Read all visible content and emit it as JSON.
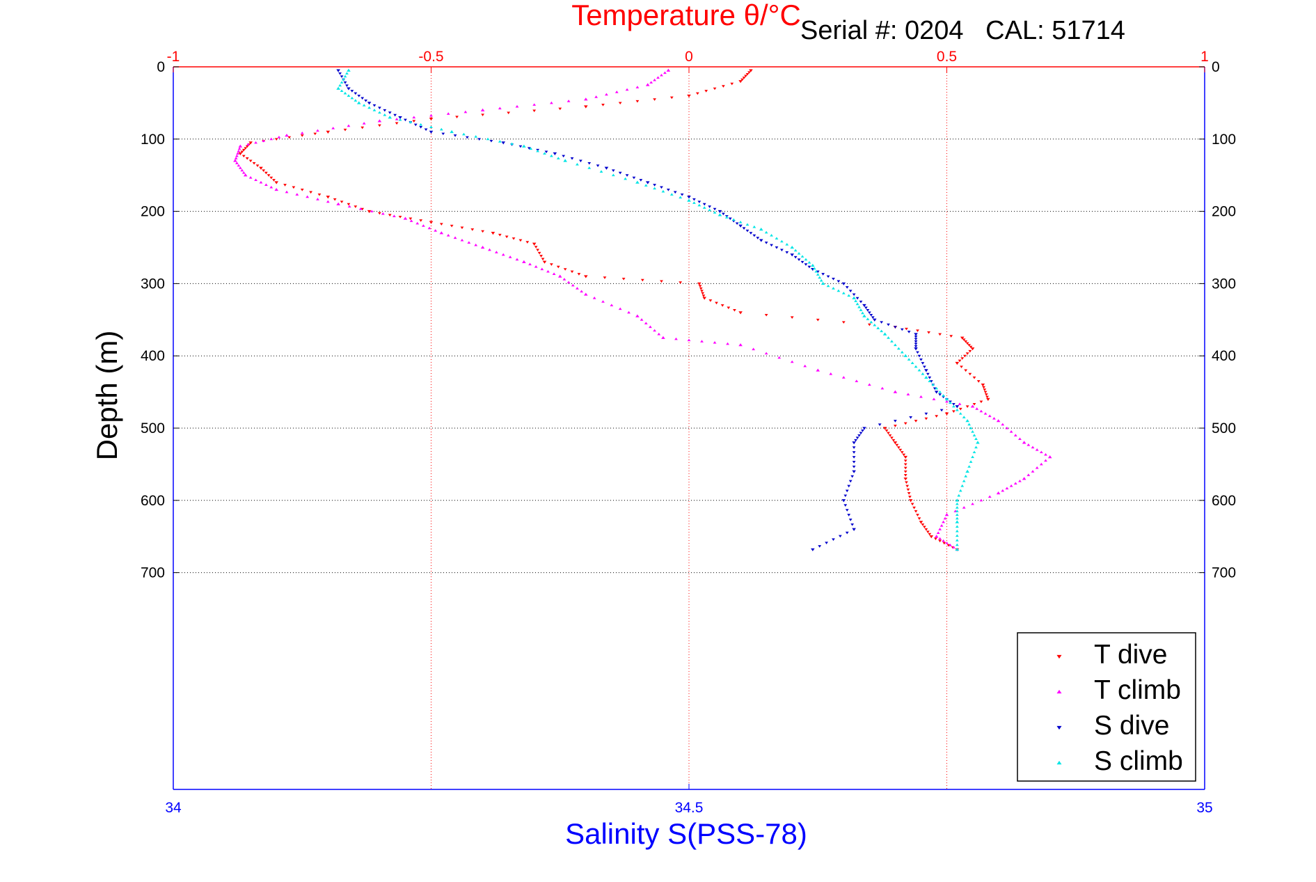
{
  "header": {
    "serial_text": "Serial #: 0204   CAL: 51714"
  },
  "colors": {
    "temperature_axis": "#ff0000",
    "salinity_axis": "#0000ff",
    "depth_axis": "#000000",
    "t_dive": "#ff0000",
    "t_climb": "#ff00ff",
    "s_dive": "#0000cc",
    "s_climb": "#00e5e5"
  },
  "chart_data": {
    "type": "scatter",
    "top_axis": {
      "title": "Temperature θ/°C",
      "range": [
        -1,
        1
      ],
      "ticks": [
        -1,
        -0.5,
        0,
        0.5,
        1
      ],
      "tick_labels": [
        "-1",
        "-0.5",
        "0",
        "0.5",
        "1"
      ]
    },
    "bottom_axis": {
      "title": "Salinity S(PSS-78)",
      "range": [
        34,
        35
      ],
      "ticks": [
        34,
        34.5,
        35
      ],
      "tick_labels": [
        "34",
        "34.5",
        "35"
      ]
    },
    "y_axis": {
      "title": "Depth (m)",
      "range": [
        0,
        1000
      ],
      "reversed": true,
      "ticks": [
        0,
        100,
        200,
        300,
        400,
        500,
        600,
        700
      ],
      "tick_labels": [
        "0",
        "100",
        "200",
        "300",
        "400",
        "500",
        "600",
        "700"
      ]
    },
    "grid": true,
    "legend_position": "bottom-right",
    "series": [
      {
        "name": "T dive",
        "axis": "temperature",
        "marker": "triangle-down",
        "points": [
          [
            0.12,
            5
          ],
          [
            0.1,
            20
          ],
          [
            0.0,
            40
          ],
          [
            -0.2,
            55
          ],
          [
            -0.5,
            72
          ],
          [
            -0.7,
            90
          ],
          [
            -0.85,
            105
          ],
          [
            -0.87,
            120
          ],
          [
            -0.83,
            140
          ],
          [
            -0.8,
            160
          ],
          [
            -0.7,
            180
          ],
          [
            -0.62,
            200
          ],
          [
            -0.5,
            215
          ],
          [
            -0.38,
            230
          ],
          [
            -0.3,
            245
          ],
          [
            -0.28,
            270
          ],
          [
            -0.2,
            290
          ],
          [
            0.02,
            300
          ],
          [
            0.03,
            320
          ],
          [
            0.1,
            340
          ],
          [
            0.4,
            360
          ],
          [
            0.53,
            375
          ],
          [
            0.55,
            390
          ],
          [
            0.52,
            410
          ],
          [
            0.57,
            440
          ],
          [
            0.58,
            460
          ],
          [
            0.5,
            480
          ],
          [
            0.38,
            500
          ],
          [
            0.4,
            520
          ],
          [
            0.42,
            540
          ],
          [
            0.42,
            570
          ],
          [
            0.43,
            600
          ],
          [
            0.45,
            630
          ],
          [
            0.47,
            650
          ],
          [
            0.52,
            668
          ]
        ]
      },
      {
        "name": "T climb",
        "axis": "temperature",
        "marker": "triangle-up",
        "points": [
          [
            -0.04,
            5
          ],
          [
            -0.08,
            25
          ],
          [
            -0.2,
            45
          ],
          [
            -0.4,
            60
          ],
          [
            -0.6,
            75
          ],
          [
            -0.78,
            95
          ],
          [
            -0.87,
            110
          ],
          [
            -0.88,
            130
          ],
          [
            -0.86,
            150
          ],
          [
            -0.8,
            170
          ],
          [
            -0.68,
            190
          ],
          [
            -0.55,
            210
          ],
          [
            -0.48,
            230
          ],
          [
            -0.4,
            250
          ],
          [
            -0.32,
            270
          ],
          [
            -0.25,
            290
          ],
          [
            -0.2,
            315
          ],
          [
            -0.1,
            345
          ],
          [
            -0.05,
            375
          ],
          [
            0.1,
            385
          ],
          [
            0.25,
            420
          ],
          [
            0.4,
            450
          ],
          [
            0.55,
            470
          ],
          [
            0.6,
            490
          ],
          [
            0.65,
            520
          ],
          [
            0.7,
            540
          ],
          [
            0.65,
            570
          ],
          [
            0.6,
            590
          ],
          [
            0.5,
            620
          ],
          [
            0.48,
            650
          ],
          [
            0.52,
            668
          ]
        ]
      },
      {
        "name": "S dive",
        "axis": "salinity",
        "marker": "triangle-down",
        "points": [
          [
            34.16,
            5
          ],
          [
            34.17,
            30
          ],
          [
            34.19,
            50
          ],
          [
            34.22,
            70
          ],
          [
            34.25,
            90
          ],
          [
            34.32,
            105
          ],
          [
            34.37,
            120
          ],
          [
            34.42,
            140
          ],
          [
            34.46,
            160
          ],
          [
            34.5,
            180
          ],
          [
            34.53,
            200
          ],
          [
            34.55,
            220
          ],
          [
            34.57,
            240
          ],
          [
            34.6,
            260
          ],
          [
            34.62,
            280
          ],
          [
            34.65,
            300
          ],
          [
            34.67,
            330
          ],
          [
            34.68,
            350
          ],
          [
            34.72,
            370
          ],
          [
            34.72,
            390
          ],
          [
            34.73,
            420
          ],
          [
            34.74,
            450
          ],
          [
            34.76,
            470
          ],
          [
            34.67,
            500
          ],
          [
            34.66,
            520
          ],
          [
            34.66,
            560
          ],
          [
            34.65,
            600
          ],
          [
            34.66,
            640
          ],
          [
            34.62,
            668
          ]
        ]
      },
      {
        "name": "S climb",
        "axis": "salinity",
        "marker": "triangle-up",
        "points": [
          [
            34.17,
            5
          ],
          [
            34.16,
            30
          ],
          [
            34.18,
            50
          ],
          [
            34.21,
            70
          ],
          [
            34.27,
            90
          ],
          [
            34.34,
            110
          ],
          [
            34.38,
            130
          ],
          [
            34.45,
            160
          ],
          [
            34.5,
            185
          ],
          [
            34.53,
            205
          ],
          [
            34.57,
            225
          ],
          [
            34.6,
            250
          ],
          [
            34.62,
            275
          ],
          [
            34.63,
            300
          ],
          [
            34.66,
            320
          ],
          [
            34.67,
            345
          ],
          [
            34.69,
            370
          ],
          [
            34.71,
            400
          ],
          [
            34.73,
            430
          ],
          [
            34.75,
            460
          ],
          [
            34.77,
            490
          ],
          [
            34.78,
            520
          ],
          [
            34.77,
            560
          ],
          [
            34.76,
            600
          ],
          [
            34.76,
            630
          ],
          [
            34.76,
            668
          ]
        ]
      }
    ]
  }
}
